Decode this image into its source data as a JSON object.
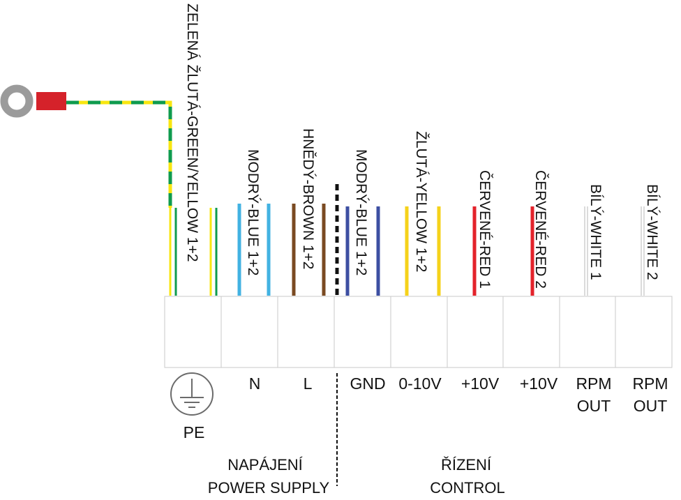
{
  "wire_labels": {
    "pe": "ZELENÁ ŽLUTÁ-GREEN/YELLOW 1+2",
    "n": "MODRÝ-BLUE 1+2",
    "l": "HNĚDÝ-BROWN 1+2",
    "gnd": "MODRÝ-BLUE 1+2",
    "signal": "ŽLUTÁ-YELLOW 1+2",
    "plus10v_1": "ČERVENÉ-RED 1",
    "plus10v_2": "ČERVENÉ-RED 2",
    "rpm_1": "BÍLÝ-WHITE 1",
    "rpm_2": "BÍLÝ-WHITE 2"
  },
  "terminals": {
    "pe": "PE",
    "n": "N",
    "l": "L",
    "gnd": "GND",
    "signal": "0-10V",
    "plus10v_1": "+10V",
    "plus10v_2": "+10V",
    "rpm_1": [
      "RPM",
      "OUT"
    ],
    "rpm_2": [
      "RPM",
      "OUT"
    ]
  },
  "groups": {
    "power": [
      "NAPÁJENÍ",
      "POWER SUPPLY"
    ],
    "control": [
      "ŘÍZENÍ",
      "CONTROL"
    ]
  },
  "icons": {
    "earth": "protective-earth-symbol-icon",
    "lug": "ring-terminal-lug-icon"
  },
  "colors": {
    "green": "#0f9b4e",
    "yellow": "#f8e610",
    "blue": "#42b2e2",
    "brown": "#7a4a22",
    "navy_blue": "#3d4fa2",
    "gold_yellow": "#f5d21a",
    "red": "#e3232b",
    "white_wire": "#cfcfcf",
    "lug_gray": "#9b9b9b",
    "lug_red": "#d5222a"
  }
}
